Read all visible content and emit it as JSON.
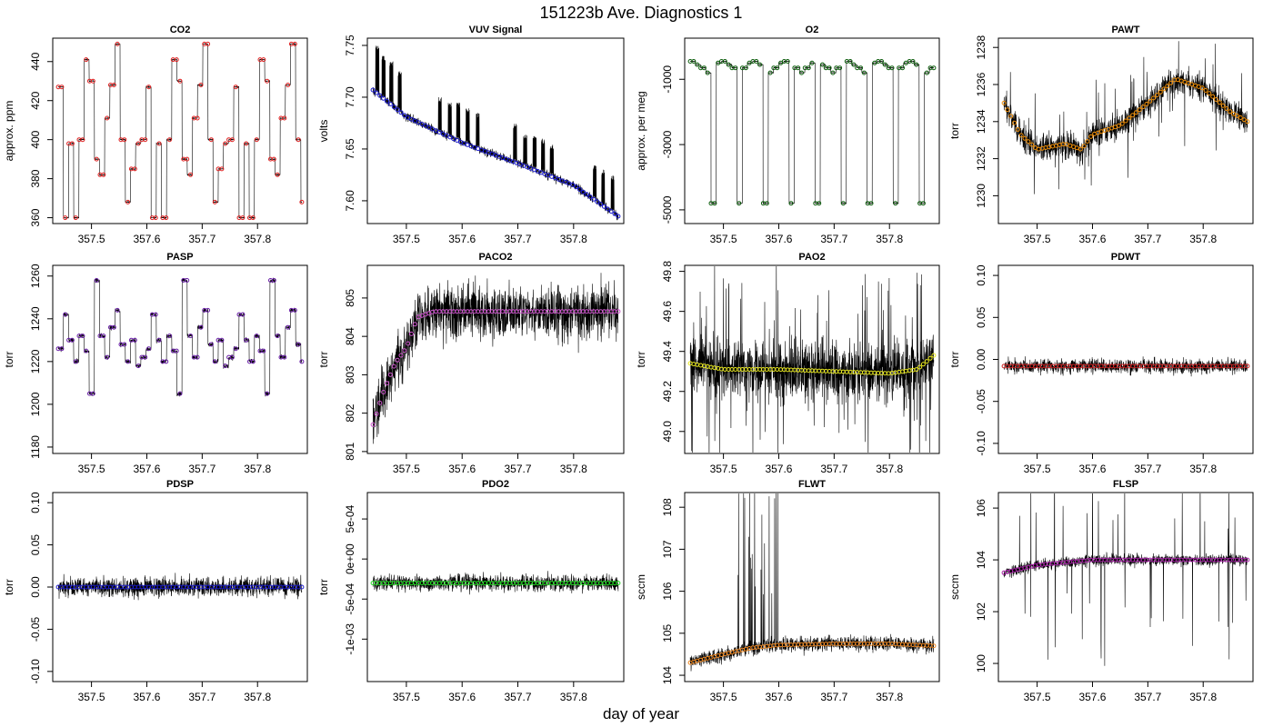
{
  "figure": {
    "title": "151223b   Ave. Diagnostics 1",
    "xlabel": "day of year"
  },
  "chart_data": [
    {
      "type": "line",
      "title": "CO2",
      "ylabel": "approx. ppm",
      "xlim": [
        357.43,
        357.89
      ],
      "ylim": [
        357,
        452
      ],
      "xticks": [
        357.5,
        357.6,
        357.7,
        357.8
      ],
      "yticks": [
        360,
        380,
        400,
        420,
        440
      ],
      "yticklabels": [
        "360",
        "380",
        "400",
        "420",
        "440"
      ],
      "marker_color": "#e02020",
      "noise": 0.4,
      "mean_kind": "steps_co2",
      "series": [
        {
          "name": "CO2 step levels",
          "cycle_values": [
            427,
            360,
            398,
            360,
            400,
            441,
            430,
            390,
            382,
            411,
            428,
            449,
            400,
            368,
            385,
            398,
            400
          ]
        }
      ]
    },
    {
      "type": "line",
      "title": "VUV Signal",
      "ylabel": "volts",
      "xlim": [
        357.43,
        357.89
      ],
      "ylim": [
        7.578,
        7.757
      ],
      "xticks": [
        357.5,
        357.6,
        357.7,
        357.8
      ],
      "yticks": [
        7.6,
        7.65,
        7.7,
        7.75
      ],
      "yticklabels": [
        "7.60",
        "7.65",
        "7.70",
        "7.75"
      ],
      "marker_color": "#1a1acc",
      "noise": 0.003,
      "mean_kind": "vuv",
      "series": [
        {
          "name": "baseline",
          "x": [
            357.44,
            357.5,
            357.6,
            357.7,
            357.8,
            357.88
          ],
          "y": [
            7.707,
            7.681,
            7.656,
            7.636,
            7.615,
            7.585
          ]
        },
        {
          "name": "spike tops",
          "x": [
            357.445,
            357.456,
            357.47,
            357.485,
            357.557,
            357.575,
            357.59,
            357.607,
            357.625,
            357.692,
            357.71,
            357.727,
            357.742,
            357.758,
            357.835,
            357.85,
            357.867
          ],
          "y": [
            7.75,
            7.74,
            7.735,
            7.725,
            7.7,
            7.695,
            7.695,
            7.69,
            7.685,
            7.675,
            7.665,
            7.665,
            7.66,
            7.655,
            7.635,
            7.63,
            7.625
          ]
        }
      ]
    },
    {
      "type": "line",
      "title": "O2",
      "ylabel": "approx. per meg",
      "xlim": [
        357.43,
        357.89
      ],
      "ylim": [
        -5420,
        260
      ],
      "xticks": [
        357.5,
        357.6,
        357.7,
        357.8
      ],
      "yticks": [
        -5000,
        -3000,
        -1000
      ],
      "yticklabels": [
        "-5000",
        "-3000",
        "-1000"
      ],
      "marker_color": "#0b5c0b",
      "noise": 15,
      "mean_kind": "o2",
      "series": [
        {
          "name": "O2 high level",
          "values": [
            -450,
            -550,
            -650,
            -800,
            -650,
            -500
          ]
        },
        {
          "name": "O2 low level",
          "values": [
            -4800
          ]
        }
      ]
    },
    {
      "type": "line",
      "title": "PAWT",
      "ylabel": "torr",
      "xlim": [
        357.43,
        357.89
      ],
      "ylim": [
        1228.5,
        1238.5
      ],
      "xticks": [
        357.5,
        357.6,
        357.7,
        357.8
      ],
      "yticks": [
        1230,
        1232,
        1234,
        1236,
        1238
      ],
      "yticklabels": [
        "1230",
        "1232",
        "1234",
        "1236",
        "1238"
      ],
      "marker_color": "#f0900a",
      "noise": 0.5,
      "mean_kind": "interp",
      "series": [
        {
          "name": "mean",
          "x": [
            357.44,
            357.47,
            357.5,
            357.55,
            357.58,
            357.6,
            357.65,
            357.7,
            357.75,
            357.8,
            357.85,
            357.88
          ],
          "y": [
            1235,
            1233.3,
            1232.5,
            1232.8,
            1232.5,
            1233.3,
            1233.8,
            1235,
            1236.3,
            1235.8,
            1234.5,
            1234
          ]
        }
      ]
    },
    {
      "type": "line",
      "title": "PASP",
      "ylabel": "torr",
      "xlim": [
        357.43,
        357.89
      ],
      "ylim": [
        1177,
        1265
      ],
      "xticks": [
        357.5,
        357.6,
        357.7,
        357.8
      ],
      "yticks": [
        1180,
        1200,
        1220,
        1240,
        1260
      ],
      "yticklabels": [
        "1180",
        "1200",
        "1220",
        "1240",
        "1260"
      ],
      "marker_color": "#6a1fa8",
      "noise": 1.5,
      "mean_kind": "steps_pasp",
      "series": [
        {
          "name": "PASP step levels",
          "cycle_values": [
            1226,
            1242,
            1230,
            1220,
            1232,
            1225,
            1205,
            1258,
            1232,
            1222,
            1236,
            1244,
            1228,
            1220,
            1230,
            1218,
            1222
          ]
        }
      ]
    },
    {
      "type": "line",
      "title": "PACO2",
      "ylabel": "torr",
      "xlim": [
        357.43,
        357.89
      ],
      "ylim": [
        800.95,
        805.85
      ],
      "xticks": [
        357.5,
        357.6,
        357.7,
        357.8
      ],
      "yticks": [
        801,
        802,
        803,
        804,
        805
      ],
      "yticklabels": [
        "801",
        "802",
        "803",
        "804",
        "805"
      ],
      "marker_color": "#cc55cc",
      "noise": 0.5,
      "mean_kind": "interp",
      "series": [
        {
          "name": "mean",
          "x": [
            357.44,
            357.46,
            357.48,
            357.5,
            357.52,
            357.55,
            357.6,
            357.88
          ],
          "y": [
            801.7,
            802.6,
            803.3,
            803.7,
            804.5,
            804.65,
            804.65,
            804.65
          ]
        }
      ]
    },
    {
      "type": "line",
      "title": "PAO2",
      "ylabel": "torr",
      "xlim": [
        357.43,
        357.89
      ],
      "ylim": [
        48.89,
        49.83
      ],
      "xticks": [
        357.5,
        357.6,
        357.7,
        357.8
      ],
      "yticks": [
        49,
        49.2,
        49.4,
        49.6,
        49.8
      ],
      "yticklabels": [
        "49.0",
        "49.2",
        "49.4",
        "49.6",
        "49.8"
      ],
      "marker_color": "#e8e820",
      "noise": 0.1,
      "mean_kind": "interp",
      "series": [
        {
          "name": "mean",
          "x": [
            357.44,
            357.5,
            357.6,
            357.7,
            357.8,
            357.85,
            357.88
          ],
          "y": [
            49.34,
            49.31,
            49.31,
            49.3,
            49.29,
            49.31,
            49.38
          ]
        }
      ]
    },
    {
      "type": "line",
      "title": "PDWT",
      "ylabel": "torr",
      "xlim": [
        357.43,
        357.89
      ],
      "ylim": [
        -0.112,
        0.112
      ],
      "xticks": [
        357.5,
        357.6,
        357.7,
        357.8
      ],
      "yticks": [
        -0.1,
        -0.05,
        0,
        0.05,
        0.1
      ],
      "yticklabels": [
        "-0.10",
        "-0.05",
        "0.00",
        "0.05",
        "0.10"
      ],
      "marker_color": "#cc2222",
      "noise": 0.006,
      "mean_kind": "interp",
      "series": [
        {
          "name": "mean",
          "x": [
            357.44,
            357.88
          ],
          "y": [
            -0.008,
            -0.008
          ]
        }
      ]
    },
    {
      "type": "line",
      "title": "PDSP",
      "ylabel": "torr",
      "xlim": [
        357.43,
        357.89
      ],
      "ylim": [
        -0.112,
        0.112
      ],
      "xticks": [
        357.5,
        357.6,
        357.7,
        357.8
      ],
      "yticks": [
        -0.1,
        -0.05,
        0,
        0.05,
        0.1
      ],
      "yticklabels": [
        "-0.10",
        "-0.05",
        "0.00",
        "0.05",
        "0.10"
      ],
      "marker_color": "#1a1acc",
      "noise": 0.008,
      "mean_kind": "interp",
      "series": [
        {
          "name": "mean",
          "x": [
            357.44,
            357.88
          ],
          "y": [
            0,
            0
          ]
        }
      ]
    },
    {
      "type": "line",
      "title": "PDO2",
      "ylabel": "torr",
      "xlim": [
        357.43,
        357.89
      ],
      "ylim": [
        -0.00153,
        0.00083
      ],
      "xticks": [
        357.5,
        357.6,
        357.7,
        357.8
      ],
      "yticks": [
        -0.001,
        -0.0005,
        0,
        0.0005
      ],
      "yticklabels": [
        "-1e-03",
        "-5e-04",
        "0e+00",
        "5e-04"
      ],
      "marker_color": "#22dd22",
      "noise": 7e-05,
      "mean_kind": "interp",
      "series": [
        {
          "name": "mean",
          "x": [
            357.44,
            357.88
          ],
          "y": [
            -0.0003,
            -0.0003
          ]
        }
      ]
    },
    {
      "type": "line",
      "title": "FLWT",
      "ylabel": "sccm",
      "xlim": [
        357.43,
        357.89
      ],
      "ylim": [
        103.85,
        108.35
      ],
      "xticks": [
        357.5,
        357.6,
        357.7,
        357.8
      ],
      "yticks": [
        104,
        105,
        106,
        107,
        108
      ],
      "yticklabels": [
        "104",
        "105",
        "106",
        "107",
        "108"
      ],
      "marker_color": "#ee8822",
      "noise": 0.12,
      "mean_kind": "interp",
      "series": [
        {
          "name": "mean",
          "x": [
            357.44,
            357.5,
            357.55,
            357.6,
            357.7,
            357.8,
            357.88
          ],
          "y": [
            104.3,
            104.5,
            104.65,
            104.72,
            104.75,
            104.75,
            104.7
          ]
        }
      ]
    },
    {
      "type": "line",
      "title": "FLSP",
      "ylabel": "sccm",
      "xlim": [
        357.43,
        357.89
      ],
      "ylim": [
        99.3,
        106.6
      ],
      "xticks": [
        357.5,
        357.6,
        357.7,
        357.8
      ],
      "yticks": [
        100,
        102,
        104,
        106
      ],
      "yticklabels": [
        "100",
        "102",
        "104",
        "106"
      ],
      "marker_color": "#aa22aa",
      "noise": 0.15,
      "mean_kind": "interp",
      "series": [
        {
          "name": "mean",
          "x": [
            357.44,
            357.5,
            357.55,
            357.6,
            357.7,
            357.8,
            357.88
          ],
          "y": [
            103.5,
            103.8,
            103.9,
            104,
            104,
            104,
            104
          ]
        }
      ]
    }
  ]
}
